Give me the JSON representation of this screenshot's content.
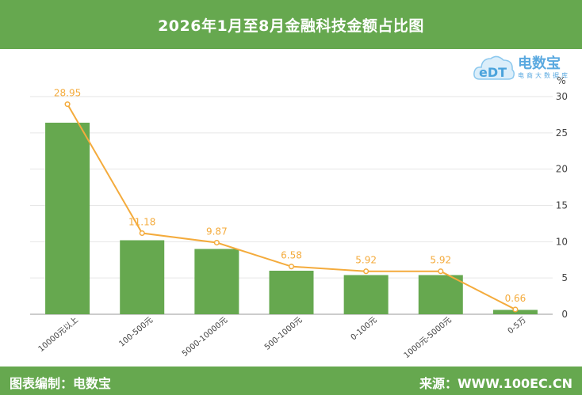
{
  "title": "2026年1月至8月金融科技金额占比图",
  "footer": {
    "left": "图表编制：电数宝",
    "right": "来源：WWW.100EC.CN"
  },
  "logo": {
    "brand": "电数宝",
    "tag": "电商大数据库",
    "mark": "eDT"
  },
  "colors": {
    "header": "#66a84f",
    "bar": "#66a84f",
    "line": "#f4ab3c",
    "grid": "#e6e6e6",
    "axis_text": "#444444"
  },
  "chart_data": {
    "type": "bar",
    "categories": [
      "10000元以上",
      "100-500元",
      "5000-10000元",
      "500-1000元",
      "0-100元",
      "1000元-5000元",
      "0-5万"
    ],
    "series": [
      {
        "type": "bar",
        "values": [
          26.4,
          10.2,
          9.0,
          6.0,
          5.4,
          5.4,
          0.6
        ]
      },
      {
        "type": "line",
        "values": [
          28.95,
          11.18,
          9.87,
          6.58,
          5.92,
          5.92,
          0.66
        ],
        "labels": [
          "28.95",
          "11.18",
          "9.87",
          "6.58",
          "5.92",
          "5.92",
          "0.66"
        ]
      }
    ],
    "y_axis": {
      "side": "right",
      "unit": "%",
      "min": 0,
      "max": 30,
      "ticks": [
        0,
        5,
        10,
        15,
        20,
        25,
        30
      ]
    },
    "grid": true
  }
}
